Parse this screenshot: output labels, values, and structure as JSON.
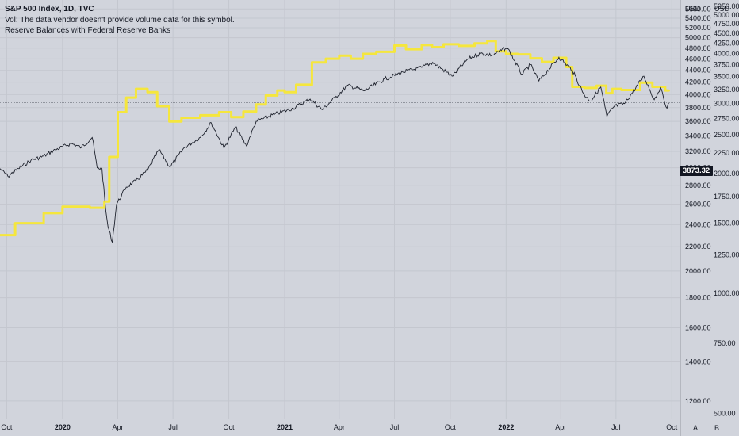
{
  "legend": {
    "title": "S&P 500 Index, 1D, TVC",
    "line2": "Vol: The data vendor doesn't provide volume data for this symbol.",
    "line3": "Reserve Balances with Federal Reserve Banks"
  },
  "currency_left": "USD",
  "currency_right": "USD",
  "last_price": "3873.32",
  "bottom_buttons": {
    "a": "A",
    "b": "B"
  },
  "colors": {
    "background": "#d1d4dc",
    "grid": "#c4c7cf",
    "spx_line": "#1e222d",
    "reserves_line": "#f5e63d",
    "price_tag": "#131722",
    "axis_text": "#131722"
  },
  "chart_data": {
    "type": "line",
    "x_axis": {
      "range": [
        "2019-09-20",
        "2022-10-15"
      ],
      "ticks": [
        {
          "date": "2019-10-01",
          "label": "Oct",
          "bold": false
        },
        {
          "date": "2020-01-01",
          "label": "2020",
          "bold": true
        },
        {
          "date": "2020-04-01",
          "label": "Apr",
          "bold": false
        },
        {
          "date": "2020-07-01",
          "label": "Jul",
          "bold": false
        },
        {
          "date": "2020-10-01",
          "label": "Oct",
          "bold": false
        },
        {
          "date": "2021-01-01",
          "label": "2021",
          "bold": true
        },
        {
          "date": "2021-04-01",
          "label": "Apr",
          "bold": false
        },
        {
          "date": "2021-07-01",
          "label": "Jul",
          "bold": false
        },
        {
          "date": "2021-10-01",
          "label": "Oct",
          "bold": false
        },
        {
          "date": "2022-01-01",
          "label": "2022",
          "bold": true
        },
        {
          "date": "2022-04-01",
          "label": "Apr",
          "bold": false
        },
        {
          "date": "2022-07-01",
          "label": "Jul",
          "bold": false
        },
        {
          "date": "2022-10-01",
          "label": "Oct",
          "bold": false
        }
      ]
    },
    "y_axes": [
      {
        "id": "spx",
        "scale": "log",
        "range": [
          1120,
          5800
        ],
        "ticks": [
          "1200.00",
          "1400.00",
          "1600.00",
          "1800.00",
          "2000.00",
          "2200.00",
          "2400.00",
          "2600.00",
          "2800.00",
          "3000.00",
          "3200.00",
          "3400.00",
          "3600.00",
          "3800.00",
          "4000.00",
          "4200.00",
          "4400.00",
          "4600.00",
          "4800.00",
          "5000.00",
          "5200.00",
          "5400.00",
          "5600.00"
        ]
      },
      {
        "id": "reserves",
        "scale": "log",
        "range": [
          485,
          5450
        ],
        "ticks": [
          "500.00",
          "750.00",
          "1000.00",
          "1250.00",
          "1500.00",
          "1750.00",
          "2000.00",
          "2250.00",
          "2500.00",
          "2750.00",
          "3000.00",
          "3250.00",
          "3500.00",
          "3750.00",
          "4000.00",
          "4250.00",
          "4500.00",
          "4750.00",
          "5000.00",
          "5250.00"
        ]
      }
    ],
    "series": [
      {
        "axis": "spx",
        "values": [
          [
            "2019-09-20",
            2990
          ],
          [
            "2019-10-03",
            2900
          ],
          [
            "2019-10-20",
            2990
          ],
          [
            "2019-11-10",
            3090
          ],
          [
            "2019-12-01",
            3140
          ],
          [
            "2019-12-20",
            3220
          ],
          [
            "2020-01-15",
            3300
          ],
          [
            "2020-02-01",
            3250
          ],
          [
            "2020-02-19",
            3380
          ],
          [
            "2020-02-27",
            3000
          ],
          [
            "2020-03-06",
            2990
          ],
          [
            "2020-03-12",
            2550
          ],
          [
            "2020-03-16",
            2380
          ],
          [
            "2020-03-23",
            2240
          ],
          [
            "2020-03-30",
            2600
          ],
          [
            "2020-04-15",
            2780
          ],
          [
            "2020-05-01",
            2850
          ],
          [
            "2020-05-20",
            2970
          ],
          [
            "2020-06-08",
            3220
          ],
          [
            "2020-06-26",
            3010
          ],
          [
            "2020-07-20",
            3250
          ],
          [
            "2020-08-15",
            3380
          ],
          [
            "2020-09-02",
            3580
          ],
          [
            "2020-09-23",
            3240
          ],
          [
            "2020-10-12",
            3520
          ],
          [
            "2020-10-30",
            3270
          ],
          [
            "2020-11-15",
            3600
          ],
          [
            "2020-12-15",
            3700
          ],
          [
            "2021-01-15",
            3790
          ],
          [
            "2021-02-12",
            3930
          ],
          [
            "2021-03-04",
            3770
          ],
          [
            "2021-03-25",
            3950
          ],
          [
            "2021-04-15",
            4150
          ],
          [
            "2021-05-12",
            4060
          ],
          [
            "2021-06-15",
            4250
          ],
          [
            "2021-07-15",
            4370
          ],
          [
            "2021-08-15",
            4450
          ],
          [
            "2021-09-02",
            4540
          ],
          [
            "2021-10-04",
            4300
          ],
          [
            "2021-10-30",
            4600
          ],
          [
            "2021-11-20",
            4700
          ],
          [
            "2021-12-10",
            4670
          ],
          [
            "2021-12-31",
            4800
          ],
          [
            "2022-01-04",
            4790
          ],
          [
            "2022-01-27",
            4330
          ],
          [
            "2022-02-10",
            4500
          ],
          [
            "2022-02-24",
            4220
          ],
          [
            "2022-03-29",
            4630
          ],
          [
            "2022-04-20",
            4400
          ],
          [
            "2022-05-10",
            3990
          ],
          [
            "2022-05-20",
            3900
          ],
          [
            "2022-06-06",
            4120
          ],
          [
            "2022-06-16",
            3670
          ],
          [
            "2022-06-28",
            3820
          ],
          [
            "2022-07-15",
            3860
          ],
          [
            "2022-08-16",
            4300
          ],
          [
            "2022-09-02",
            3920
          ],
          [
            "2022-09-12",
            4110
          ],
          [
            "2022-09-23",
            3790
          ],
          [
            "2022-09-26",
            3873
          ]
        ]
      },
      {
        "axis": "reserves",
        "values": [
          [
            "2019-09-20",
            1400
          ],
          [
            "2019-10-15",
            1500
          ],
          [
            "2019-12-01",
            1590
          ],
          [
            "2020-01-01",
            1650
          ],
          [
            "2020-02-15",
            1640
          ],
          [
            "2020-03-10",
            1700
          ],
          [
            "2020-03-18",
            2200
          ],
          [
            "2020-04-01",
            2850
          ],
          [
            "2020-04-15",
            3100
          ],
          [
            "2020-05-01",
            3260
          ],
          [
            "2020-05-20",
            3200
          ],
          [
            "2020-06-05",
            2950
          ],
          [
            "2020-06-25",
            2700
          ],
          [
            "2020-07-15",
            2760
          ],
          [
            "2020-08-15",
            2800
          ],
          [
            "2020-09-15",
            2850
          ],
          [
            "2020-10-05",
            2770
          ],
          [
            "2020-10-25",
            2860
          ],
          [
            "2020-11-15",
            2980
          ],
          [
            "2020-12-01",
            3140
          ],
          [
            "2020-12-20",
            3230
          ],
          [
            "2021-01-01",
            3200
          ],
          [
            "2021-01-20",
            3340
          ],
          [
            "2021-02-15",
            3800
          ],
          [
            "2021-03-10",
            3880
          ],
          [
            "2021-04-01",
            3950
          ],
          [
            "2021-04-20",
            3880
          ],
          [
            "2021-05-10",
            3990
          ],
          [
            "2021-06-01",
            4040
          ],
          [
            "2021-07-01",
            4190
          ],
          [
            "2021-07-20",
            4100
          ],
          [
            "2021-08-15",
            4200
          ],
          [
            "2021-09-01",
            4150
          ],
          [
            "2021-09-20",
            4220
          ],
          [
            "2021-10-15",
            4180
          ],
          [
            "2021-11-10",
            4240
          ],
          [
            "2021-12-01",
            4300
          ],
          [
            "2021-12-15",
            4050
          ],
          [
            "2022-01-01",
            3990
          ],
          [
            "2022-01-20",
            3980
          ],
          [
            "2022-02-10",
            3890
          ],
          [
            "2022-03-01",
            3810
          ],
          [
            "2022-03-20",
            3900
          ],
          [
            "2022-04-10",
            3700
          ],
          [
            "2022-04-20",
            3300
          ],
          [
            "2022-05-10",
            3280
          ],
          [
            "2022-05-30",
            3320
          ],
          [
            "2022-06-15",
            3180
          ],
          [
            "2022-06-25",
            3260
          ],
          [
            "2022-07-10",
            3240
          ],
          [
            "2022-08-10",
            3380
          ],
          [
            "2022-08-30",
            3300
          ],
          [
            "2022-09-20",
            3230
          ],
          [
            "2022-09-26",
            3240
          ]
        ]
      }
    ]
  }
}
